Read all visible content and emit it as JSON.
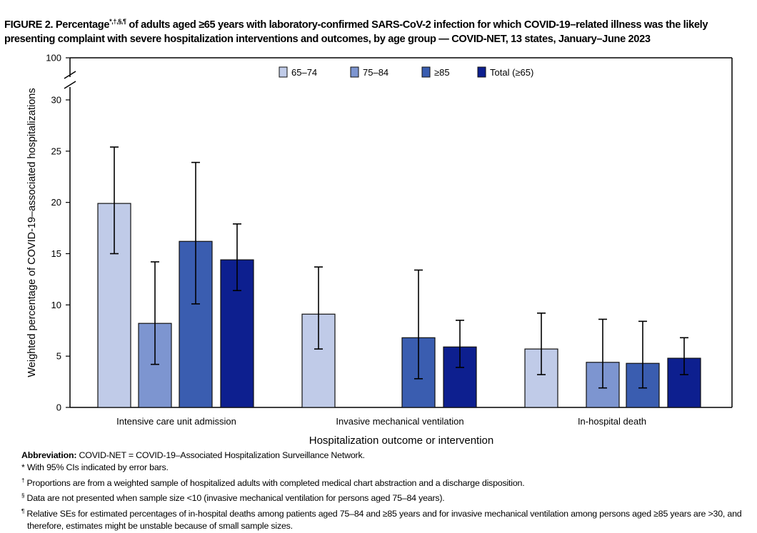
{
  "title": {
    "prefix": "FIGURE 2. Percentage",
    "marks": "*,†,§,¶",
    "rest": " of adults aged ≥65 years with laboratory-confirmed SARS-CoV-2 infection for which COVID-19–related illness was the likely presenting complaint with severe hospitalization interventions and outcomes, by age group — COVID-NET, 13 states, January–June 2023"
  },
  "notes": {
    "abbrev_label": "Abbreviation:",
    "abbrev_text": " COVID-NET = COVID-19–Associated Hospitalization Surveillance Network.",
    "items": [
      {
        "mark": "*",
        "text": " With 95% CIs indicated by error bars."
      },
      {
        "mark": "†",
        "text": " Proportions are from a weighted sample of hospitalized adults with completed medical chart abstraction and a discharge disposition."
      },
      {
        "mark": "§",
        "text": " Data are not presented when sample size <10 (invasive mechanical ventilation for persons aged 75–84 years)."
      },
      {
        "mark": "¶",
        "text": " Relative SEs for estimated percentages of in-hospital deaths among patients aged 75–84 and ≥85 years and for invasive mechanical ventilation among persons aged ≥85 years are >30, and therefore, estimates might be unstable because of small sample sizes."
      }
    ]
  },
  "chart_data": {
    "type": "bar",
    "xlabel": "Hospitalization outcome or intervention",
    "ylabel": "Weighted percentage of COVID-19–associated hospitalizations",
    "ylim": [
      0,
      30
    ],
    "y_break_top": 100,
    "yticks": [
      "0",
      "5",
      "10",
      "15",
      "20",
      "25",
      "30",
      "100"
    ],
    "legend_position": "top-center",
    "categories": [
      "Intensive care unit admission",
      "Invasive mechanical ventilation",
      "In-hospital death"
    ],
    "series": [
      {
        "name": "65–74",
        "color": "#c0cbe8",
        "values": [
          19.9,
          9.1,
          5.7
        ],
        "ci_low": [
          15.0,
          5.7,
          3.2
        ],
        "ci_high": [
          25.4,
          13.7,
          9.2
        ]
      },
      {
        "name": "75–84",
        "color": "#7d95d0",
        "values": [
          8.2,
          null,
          4.4
        ],
        "ci_low": [
          4.2,
          null,
          1.9
        ],
        "ci_high": [
          14.2,
          null,
          8.6
        ]
      },
      {
        "name": "≥85",
        "color": "#3a5db0",
        "values": [
          16.2,
          6.8,
          4.3
        ],
        "ci_low": [
          10.1,
          2.8,
          1.9
        ],
        "ci_high": [
          23.9,
          13.4,
          8.4
        ]
      },
      {
        "name": "Total (≥65)",
        "color": "#0d1f8f",
        "values": [
          14.4,
          5.9,
          4.8
        ],
        "ci_low": [
          11.4,
          3.9,
          3.2
        ],
        "ci_high": [
          17.9,
          8.5,
          6.8
        ]
      }
    ]
  }
}
